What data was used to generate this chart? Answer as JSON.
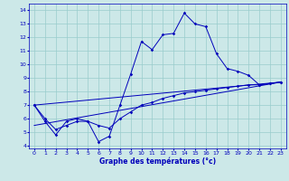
{
  "xlabel": "Graphe des températures (°c)",
  "xlim": [
    -0.5,
    23.5
  ],
  "ylim": [
    3.8,
    14.5
  ],
  "yticks": [
    4,
    5,
    6,
    7,
    8,
    9,
    10,
    11,
    12,
    13,
    14
  ],
  "xticks": [
    0,
    1,
    2,
    3,
    4,
    5,
    6,
    7,
    8,
    9,
    10,
    11,
    12,
    13,
    14,
    15,
    16,
    17,
    18,
    19,
    20,
    21,
    22,
    23
  ],
  "bg_color": "#cce8e8",
  "line_color": "#0000bb",
  "grid_color": "#99cccc",
  "lines": [
    {
      "x": [
        0,
        1,
        2,
        3,
        4,
        5,
        6,
        7,
        8,
        9,
        10,
        11,
        12,
        13,
        14,
        15,
        16,
        17,
        18,
        19,
        20,
        21,
        22,
        23
      ],
      "y": [
        7.0,
        5.8,
        4.8,
        5.8,
        6.0,
        5.8,
        4.3,
        4.7,
        7.0,
        9.3,
        11.7,
        11.1,
        12.2,
        12.3,
        13.8,
        13.0,
        12.8,
        10.8,
        9.7,
        9.5,
        9.2,
        8.5,
        8.6,
        8.7
      ],
      "marker": true
    },
    {
      "x": [
        0,
        1,
        2,
        3,
        4,
        5,
        6,
        7,
        8,
        9,
        10,
        11,
        12,
        13,
        14,
        15,
        16,
        17,
        18,
        19,
        20,
        21,
        22,
        23
      ],
      "y": [
        7.0,
        6.0,
        5.2,
        5.5,
        5.8,
        5.8,
        5.5,
        5.3,
        6.0,
        6.5,
        7.0,
        7.2,
        7.5,
        7.7,
        7.9,
        8.0,
        8.1,
        8.2,
        8.3,
        8.4,
        8.5,
        8.5,
        8.6,
        8.7
      ],
      "marker": true
    },
    {
      "x": [
        0,
        23
      ],
      "y": [
        7.0,
        8.7
      ],
      "marker": false
    },
    {
      "x": [
        0,
        23
      ],
      "y": [
        5.5,
        8.7
      ],
      "marker": false
    }
  ]
}
